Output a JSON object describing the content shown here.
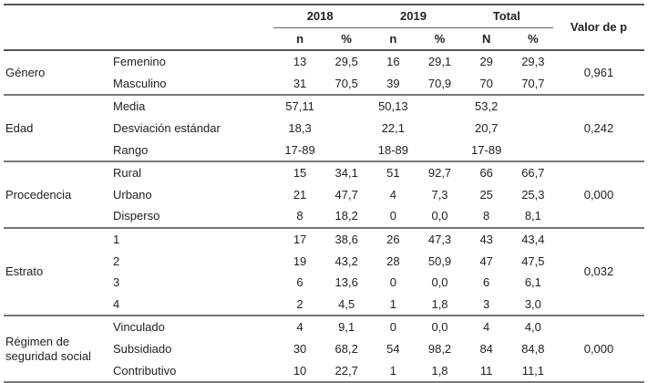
{
  "header": {
    "year1": "2018",
    "year2": "2019",
    "total": "Total",
    "pvalue": "Valor de p",
    "sub": [
      "n",
      "%",
      "n",
      "%",
      "N",
      "%"
    ]
  },
  "groups": [
    {
      "category": "Género",
      "p": "0,961",
      "rows": [
        {
          "label": "Femenino",
          "v": [
            "13",
            "29,5",
            "16",
            "29,1",
            "29",
            "29,3"
          ]
        },
        {
          "label": "Masculino",
          "v": [
            "31",
            "70,5",
            "39",
            "70,9",
            "70",
            "70,7"
          ]
        }
      ]
    },
    {
      "category": "Edad",
      "p": "0,242",
      "rows": [
        {
          "label": "Media",
          "v": [
            "57,11",
            "",
            "50,13",
            "",
            "53,2",
            ""
          ]
        },
        {
          "label": "Desviación estándar",
          "v": [
            "18,3",
            "",
            "22,1",
            "",
            "20,7",
            ""
          ]
        },
        {
          "label": "Rango",
          "v": [
            "17-89",
            "",
            "18-89",
            "",
            "17-89",
            ""
          ]
        }
      ]
    },
    {
      "category": "Procedencia",
      "p": "0,000",
      "rows": [
        {
          "label": "Rural",
          "v": [
            "15",
            "34,1",
            "51",
            "92,7",
            "66",
            "66,7"
          ]
        },
        {
          "label": "Urbano",
          "v": [
            "21",
            "47,7",
            "4",
            "7,3",
            "25",
            "25,3"
          ]
        },
        {
          "label": "Disperso",
          "v": [
            "8",
            "18,2",
            "0",
            "0,0",
            "8",
            "8,1"
          ]
        }
      ]
    },
    {
      "category": "Estrato",
      "p": "0,032",
      "rows": [
        {
          "label": "1",
          "v": [
            "17",
            "38,6",
            "26",
            "47,3",
            "43",
            "43,4"
          ]
        },
        {
          "label": "2",
          "v": [
            "19",
            "43,2",
            "28",
            "50,9",
            "47",
            "47,5"
          ]
        },
        {
          "label": "3",
          "v": [
            "6",
            "13,6",
            "0",
            "0,0",
            "6",
            "6,1"
          ]
        },
        {
          "label": "4",
          "v": [
            "2",
            "4,5",
            "1",
            "1,8",
            "3",
            "3,0"
          ]
        }
      ]
    },
    {
      "category": "Régimen de seguridad social",
      "category_lines": [
        "Régimen de",
        "seguridad social"
      ],
      "p": "0,000",
      "rows": [
        {
          "label": "Vinculado",
          "v": [
            "4",
            "9,1",
            "0",
            "0,0",
            "4",
            "4,0"
          ]
        },
        {
          "label": "Subsidiado",
          "v": [
            "30",
            "68,2",
            "54",
            "98,2",
            "84",
            "84,8"
          ]
        },
        {
          "label": "Contributivo",
          "v": [
            "10",
            "22,7",
            "1",
            "1,8",
            "11",
            "11,1"
          ]
        }
      ]
    }
  ]
}
